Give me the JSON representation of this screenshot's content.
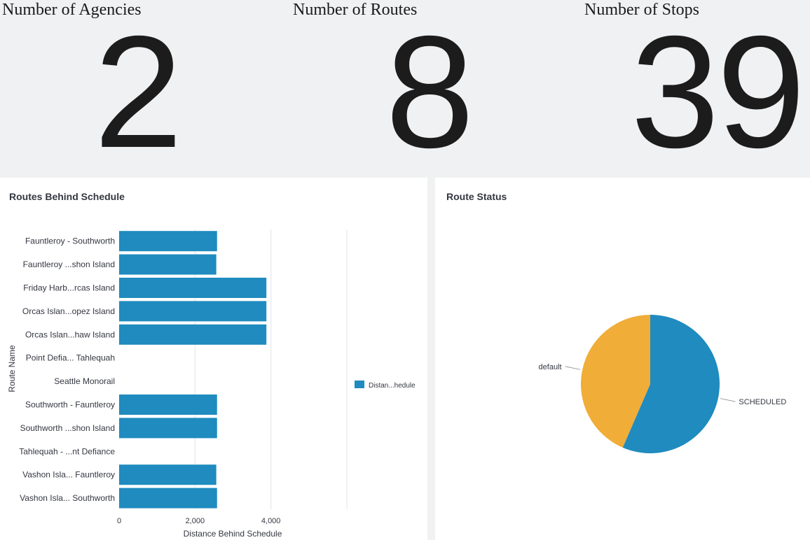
{
  "stats": [
    {
      "title": "Number of Agencies",
      "value": "2"
    },
    {
      "title": "Number of Routes",
      "value": "8"
    },
    {
      "title": "Number of Stops",
      "value": "39"
    }
  ],
  "bar_panel": {
    "title": "Routes Behind Schedule"
  },
  "pie_panel": {
    "title": "Route Status"
  },
  "chart_data": [
    {
      "type": "bar",
      "orientation": "horizontal",
      "title": "Routes Behind Schedule",
      "xlabel": "Distance Behind Schedule",
      "ylabel": "Route Name",
      "xlim": [
        0,
        6000
      ],
      "x_ticks": [
        0,
        2000,
        4000
      ],
      "x_tick_labels": [
        "0",
        "2,000",
        "4,000"
      ],
      "categories": [
        "Fauntleroy - Southworth",
        "Fauntleroy ...shon Island",
        "Friday Harb...rcas Island",
        "Orcas Islan...opez Island",
        "Orcas Islan...haw Island",
        "Point Defia... Tahlequah",
        "Seattle Monorail",
        "Southworth - Fauntleroy",
        "Southworth ...shon Island",
        "Tahlequah - ...nt Defiance",
        "Vashon Isla... Fauntleroy",
        "Vashon Isla... Southworth"
      ],
      "series": [
        {
          "name": "Distan...hedule",
          "color": "#1f8bbf",
          "values": [
            2580,
            2560,
            3880,
            3880,
            3880,
            0,
            0,
            2580,
            2580,
            0,
            2560,
            2580
          ]
        }
      ],
      "grid": true,
      "legend": "right"
    },
    {
      "type": "pie",
      "title": "Route Status",
      "slices": [
        {
          "label": "SCHEDULED",
          "value": 56.5,
          "color": "#1f8bbf"
        },
        {
          "label": "default",
          "value": 43.5,
          "color": "#f0ad37"
        }
      ]
    }
  ]
}
